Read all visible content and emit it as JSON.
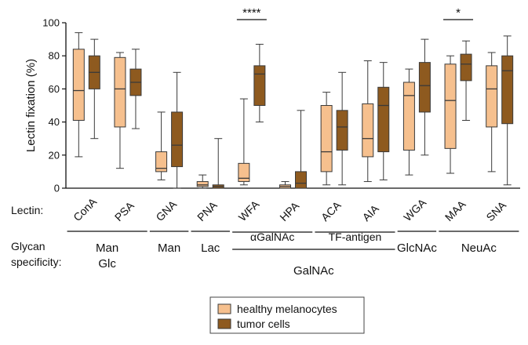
{
  "chart_data": {
    "type": "box",
    "ylabel": "Lectin fixation (%)",
    "ylim": [
      0,
      100
    ],
    "yticks": [
      0,
      20,
      40,
      60,
      80,
      100
    ],
    "row_labels": {
      "lectin": "Lectin:",
      "glycan": [
        "Glycan",
        "specificity:"
      ]
    },
    "categories": [
      "ConA",
      "PSA",
      "GNA",
      "PNA",
      "WFA",
      "HPA",
      "ACA",
      "AIA",
      "WGA",
      "MAA",
      "SNA"
    ],
    "series": [
      {
        "name": "healthy melanocytes",
        "color": "#f6c08e",
        "boxes": [
          {
            "min": 19,
            "q1": 41,
            "median": 59,
            "q3": 84,
            "max": 94
          },
          {
            "min": 12,
            "q1": 37,
            "median": 60,
            "q3": 79,
            "max": 82
          },
          {
            "min": 5,
            "q1": 10,
            "median": 12,
            "q3": 22,
            "max": 46
          },
          {
            "min": 0,
            "q1": 1,
            "median": 2,
            "q3": 4,
            "max": 8
          },
          {
            "min": 2,
            "q1": 4,
            "median": 6,
            "q3": 15,
            "max": 54
          },
          {
            "min": 0,
            "q1": 0,
            "median": 1,
            "q3": 2,
            "max": 4
          },
          {
            "min": 2,
            "q1": 10,
            "median": 22,
            "q3": 50,
            "max": 58
          },
          {
            "min": 4,
            "q1": 19,
            "median": 30,
            "q3": 51,
            "max": 77
          },
          {
            "min": 8,
            "q1": 23,
            "median": 56,
            "q3": 64,
            "max": 72
          },
          {
            "min": 9,
            "q1": 24,
            "median": 53,
            "q3": 75,
            "max": 80
          },
          {
            "min": 10,
            "q1": 37,
            "median": 60,
            "q3": 74,
            "max": 82
          }
        ]
      },
      {
        "name": "tumor cells",
        "color": "#8e5a1f",
        "boxes": [
          {
            "min": 30,
            "q1": 60,
            "median": 70,
            "q3": 80,
            "max": 90
          },
          {
            "min": 36,
            "q1": 56,
            "median": 64,
            "q3": 72,
            "max": 84
          },
          {
            "min": 0,
            "q1": 13,
            "median": 26,
            "q3": 46,
            "max": 70
          },
          {
            "min": 0,
            "q1": 0,
            "median": 1,
            "q3": 2,
            "max": 30
          },
          {
            "min": 40,
            "q1": 50,
            "median": 69,
            "q3": 74,
            "max": 87
          },
          {
            "min": 0,
            "q1": 0,
            "median": 3,
            "q3": 10,
            "max": 47
          },
          {
            "min": 2,
            "q1": 23,
            "median": 37,
            "q3": 47,
            "max": 70
          },
          {
            "min": 5,
            "q1": 22,
            "median": 50,
            "q3": 61,
            "max": 76
          },
          {
            "min": 20,
            "q1": 46,
            "median": 62,
            "q3": 76,
            "max": 90
          },
          {
            "min": 41,
            "q1": 65,
            "median": 75,
            "q3": 81,
            "max": 89
          },
          {
            "min": 2,
            "q1": 39,
            "median": 71,
            "q3": 80,
            "max": 92
          }
        ]
      }
    ],
    "significance": [
      {
        "category": "WFA",
        "label": "****"
      },
      {
        "category": "MAA",
        "label": "*"
      }
    ],
    "glycan_groups": [
      {
        "lines": [
          "Man",
          "Glc"
        ],
        "from": "ConA",
        "to": "PSA"
      },
      {
        "lines": [
          "Man"
        ],
        "from": "GNA",
        "to": "GNA"
      },
      {
        "lines": [
          "Lac"
        ],
        "from": "PNA",
        "to": "PNA"
      },
      {
        "lines": [
          "GalNAc"
        ],
        "from": "WFA",
        "to": "AIA"
      },
      {
        "lines": [
          "GlcNAc"
        ],
        "from": "WGA",
        "to": "WGA"
      },
      {
        "lines": [
          "NeuAc"
        ],
        "from": "MAA",
        "to": "SNA"
      }
    ],
    "glycan_subgroups": [
      {
        "label": "αGalNAc",
        "from": "WFA",
        "to": "HPA"
      },
      {
        "label": "TF-antigen",
        "from": "ACA",
        "to": "AIA"
      }
    ],
    "legend": {
      "position": "bottom-center",
      "entries": [
        "healthy melanocytes",
        "tumor cells"
      ]
    }
  }
}
